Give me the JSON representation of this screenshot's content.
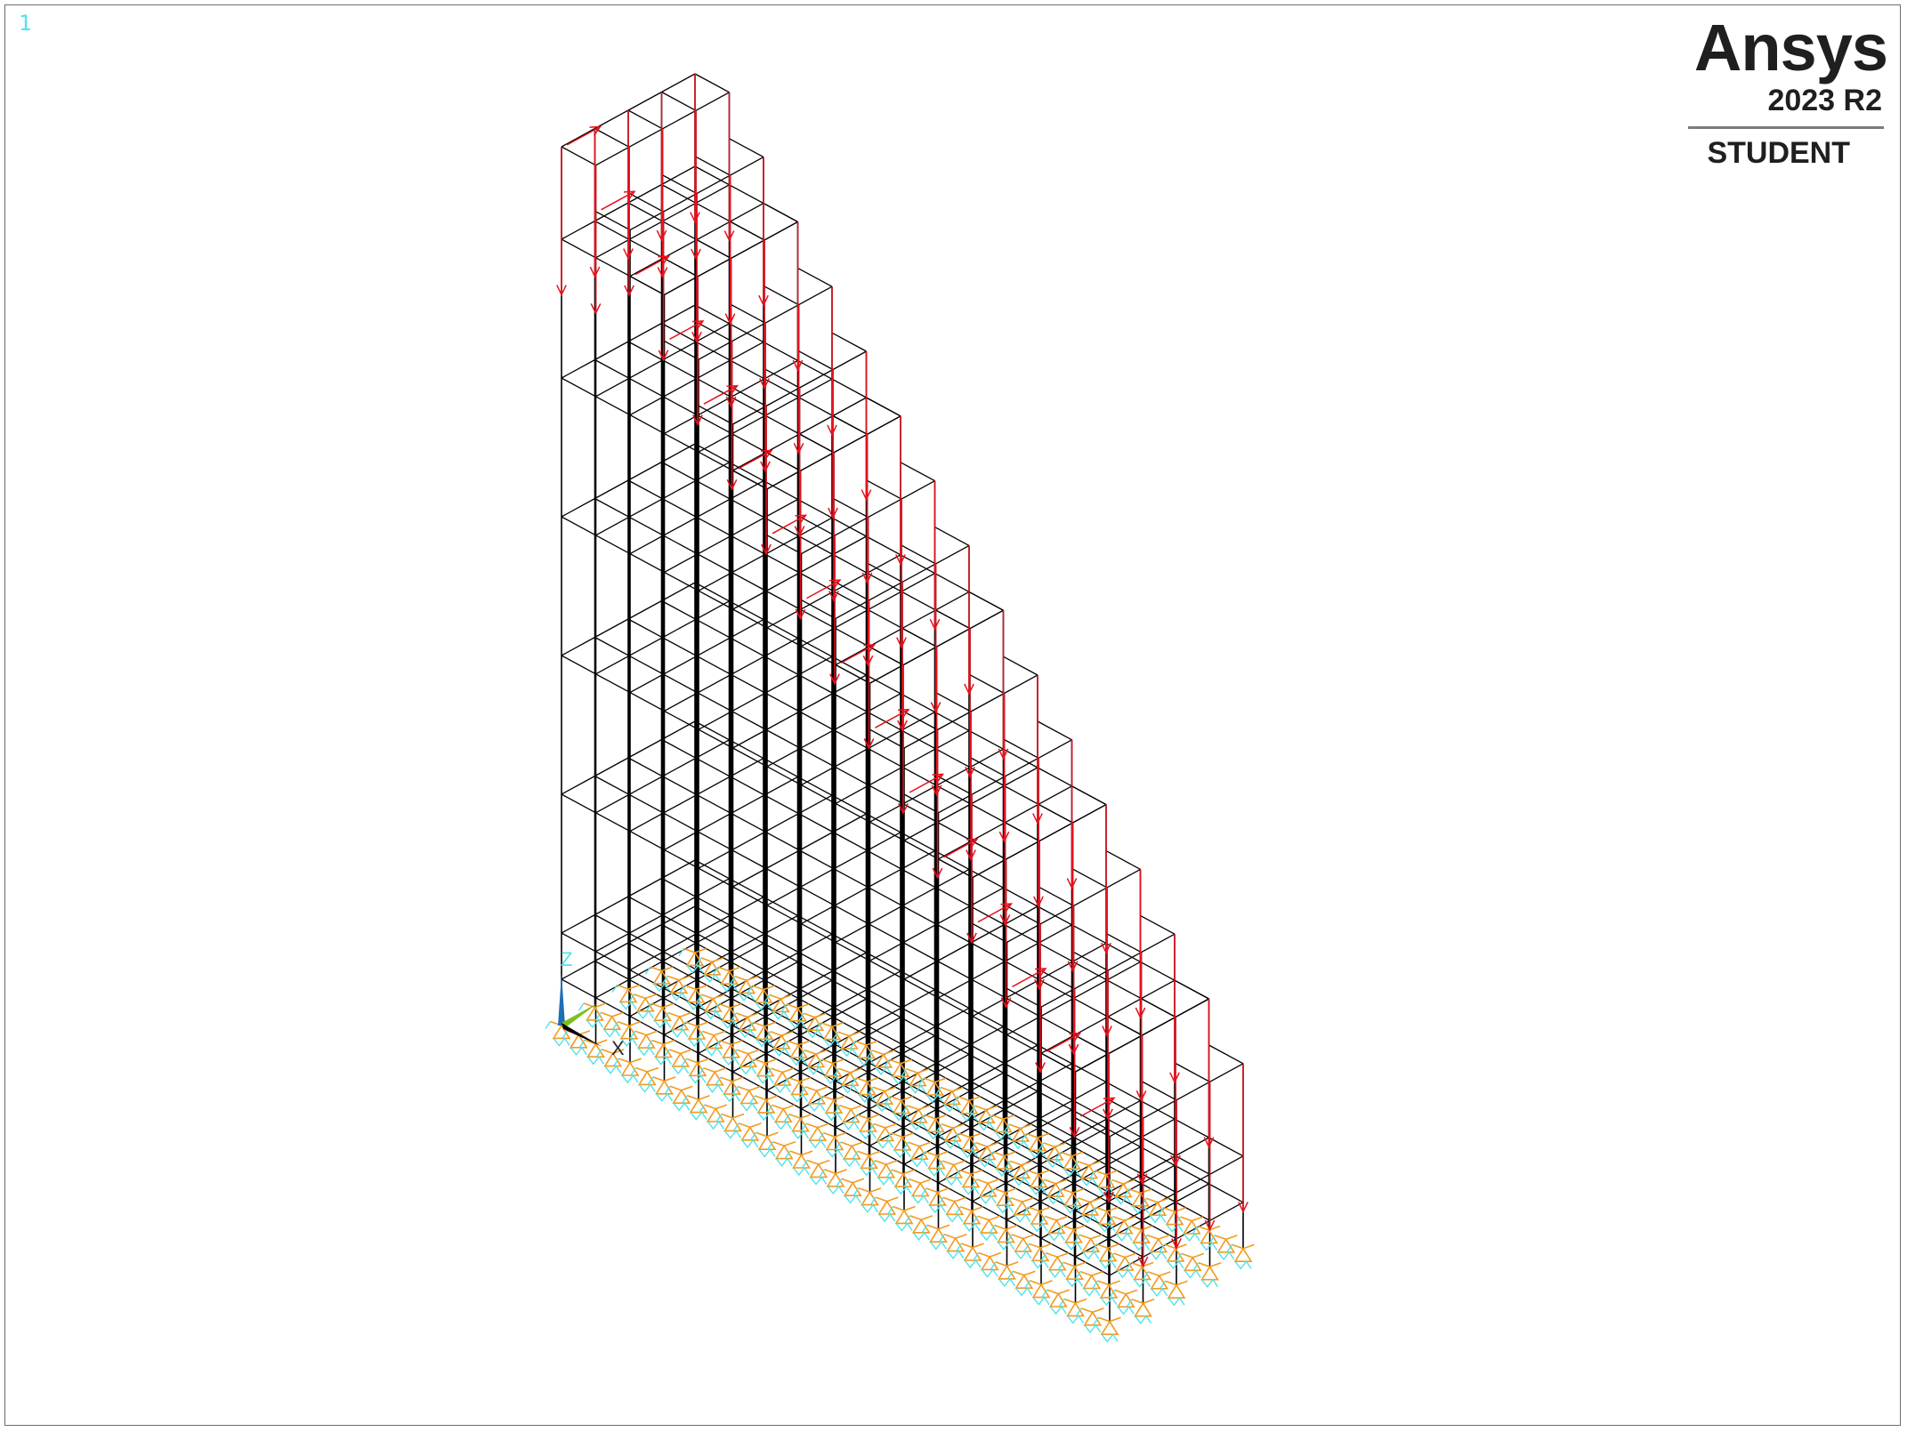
{
  "window": {
    "number_label": "1"
  },
  "logo": {
    "brand": "Ansys",
    "version": "2023 R2",
    "edition": "STUDENT"
  },
  "triad": {
    "x_label": "X",
    "z_label": "Z"
  },
  "colors": {
    "frame": "#000000",
    "load_arrow": "#e8101c",
    "support_orange": "#f39a1e",
    "support_cyan": "#4fe3ea",
    "viewport_border": "#6e6e6e",
    "triad_z": "#1f6fb5",
    "triad_y": "#7ac01e",
    "triad_x": "#000000"
  },
  "icons": {
    "support": "fixed-support-icon",
    "load": "force-arrow-icon",
    "triad": "coordinate-triad-icon"
  }
}
